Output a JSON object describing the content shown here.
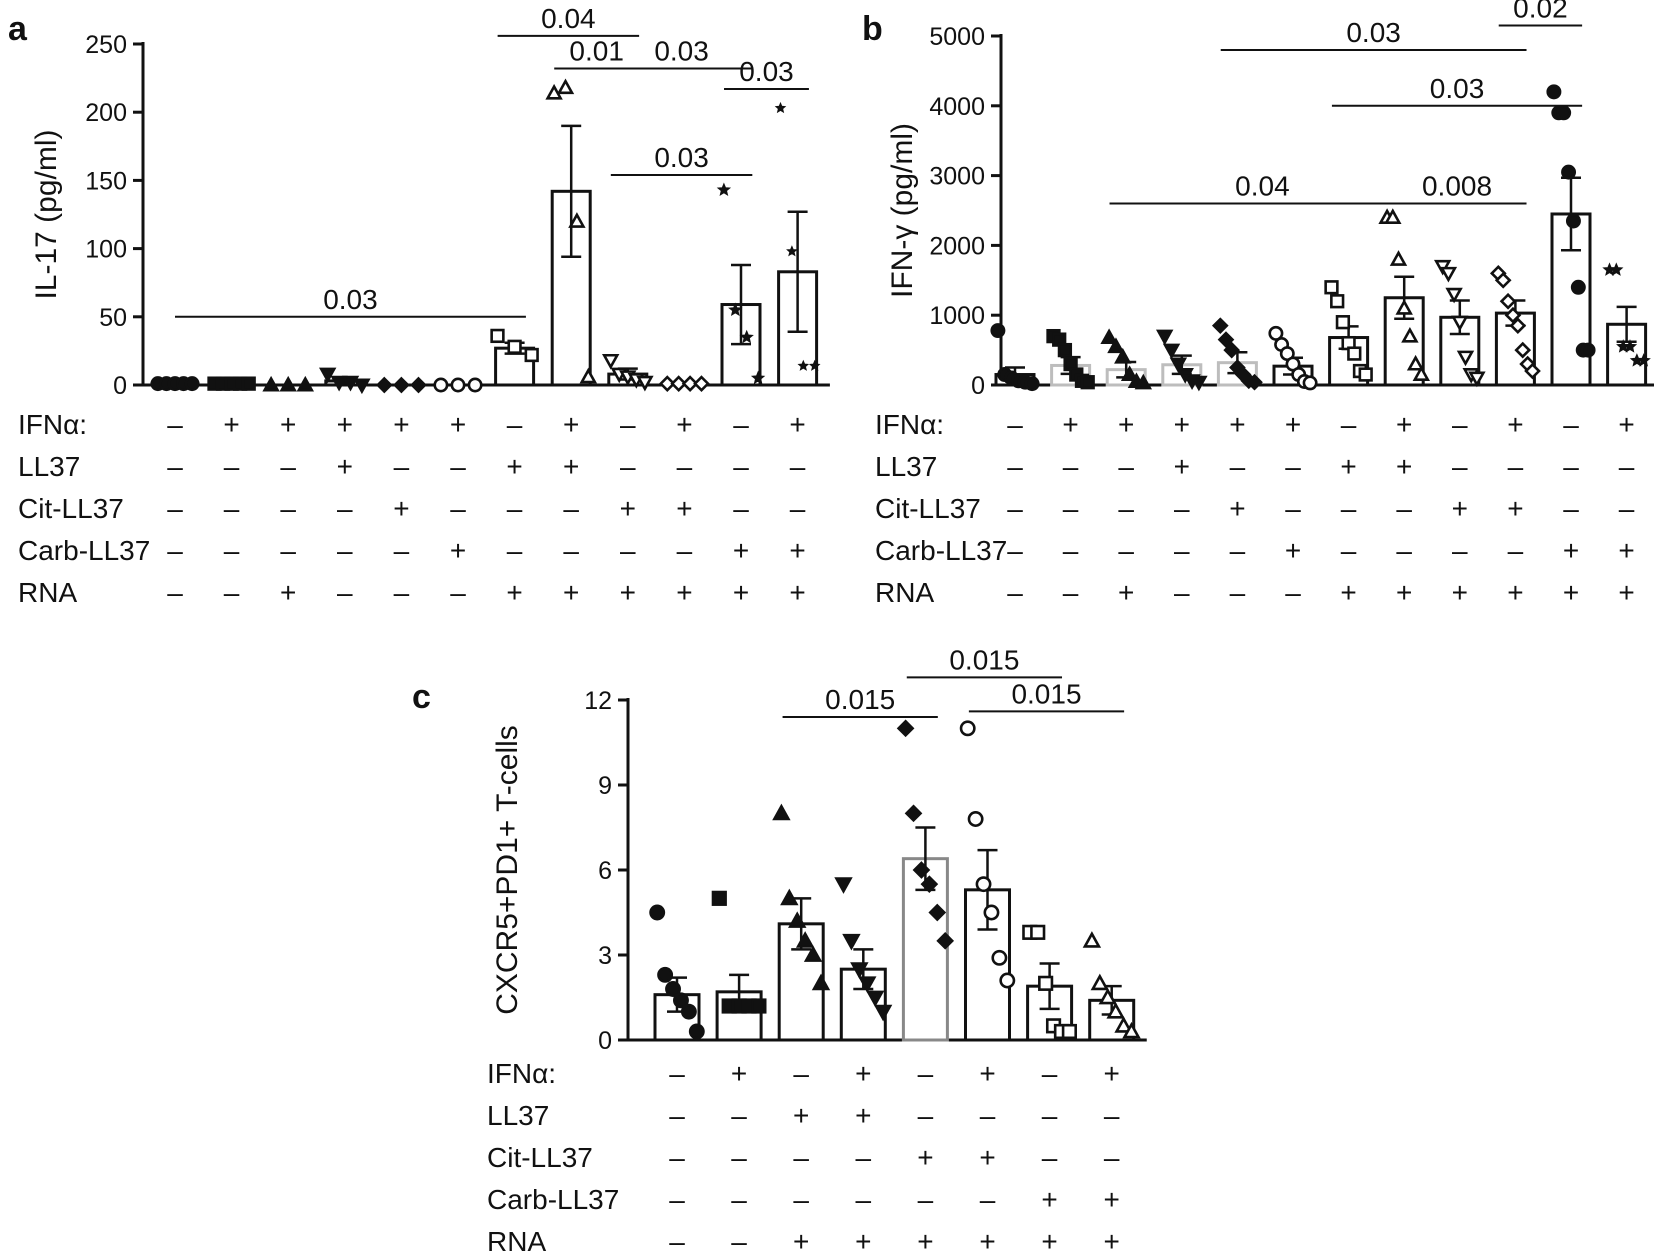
{
  "chart_data": [
    {
      "type": "bar",
      "panel": "a",
      "ylabel": "IL-17 (pg/ml)",
      "ylim": [
        0,
        250
      ],
      "yticks": [
        0,
        50,
        100,
        150,
        200,
        250
      ],
      "y_tick_labels": [
        "0",
        "50",
        "100",
        "150",
        "200",
        "250"
      ],
      "condition_rows": [
        {
          "label": "IFNα:",
          "signs": [
            "–",
            "+",
            "+",
            "+",
            "+",
            "+",
            "–",
            "+",
            "–",
            "+",
            "–",
            "+"
          ]
        },
        {
          "label": "LL37",
          "signs": [
            "–",
            "–",
            "–",
            "+",
            "–",
            "–",
            "+",
            "+",
            "–",
            "–",
            "–",
            "–"
          ]
        },
        {
          "label": "Cit-LL37",
          "signs": [
            "–",
            "–",
            "–",
            "–",
            "+",
            "–",
            "–",
            "–",
            "+",
            "+",
            "–",
            "–"
          ]
        },
        {
          "label": "Carb-LL37",
          "signs": [
            "–",
            "–",
            "–",
            "–",
            "–",
            "+",
            "–",
            "–",
            "–",
            "–",
            "+",
            "+"
          ]
        },
        {
          "label": "RNA",
          "signs": [
            "–",
            "–",
            "+",
            "–",
            "–",
            "–",
            "+",
            "+",
            "+",
            "+",
            "+",
            "+"
          ]
        }
      ],
      "bars": [
        {
          "value": 1,
          "sem": 1,
          "marker": "circle-filled",
          "points": [
            1,
            1,
            1,
            1,
            1
          ]
        },
        {
          "value": 1,
          "sem": 1,
          "marker": "square-filled",
          "points": [
            1,
            1,
            1,
            1,
            1
          ]
        },
        {
          "value": 0,
          "sem": 0,
          "marker": "triangle-filled",
          "points": [
            0,
            0,
            0
          ]
        },
        {
          "value": 3,
          "sem": 2,
          "marker": "triangle-down-filled",
          "points": [
            8,
            2,
            2,
            0
          ]
        },
        {
          "value": 0,
          "sem": 0,
          "marker": "diamond-filled",
          "points": [
            0,
            0,
            0
          ]
        },
        {
          "value": 0,
          "sem": 0,
          "marker": "circle-open",
          "points": [
            0,
            0,
            0
          ]
        },
        {
          "value": 27,
          "sem": 4,
          "marker": "square-open",
          "points": [
            36,
            28,
            22
          ]
        },
        {
          "value": 142,
          "sem": 48,
          "marker": "triangle-open",
          "points": [
            214,
            218,
            120,
            6
          ]
        },
        {
          "value": 8,
          "sem": 4,
          "marker": "triangle-down-open",
          "points": [
            18,
            8,
            6,
            4,
            2
          ]
        },
        {
          "value": 1,
          "sem": 1,
          "marker": "diamond-open",
          "points": [
            1,
            1,
            1,
            1
          ]
        },
        {
          "value": 59,
          "sem": 29,
          "marker": "star-filled",
          "points": [
            143,
            55,
            35,
            5
          ]
        },
        {
          "value": 83,
          "sem": 44,
          "marker": "star-small",
          "points": [
            203,
            98,
            14,
            14
          ]
        }
      ],
      "comparisons": [
        {
          "from": 1,
          "to": 7,
          "p": "0.03",
          "y": 50
        },
        {
          "from": 8,
          "to": 9,
          "p": "0.01",
          "y": 232
        },
        {
          "from": 7,
          "to": 9,
          "p": "0.04",
          "y": 256
        },
        {
          "from": 9,
          "to": 11,
          "p": "0.03",
          "y": 232
        },
        {
          "from": 9,
          "to": 11,
          "p": "0.03",
          "y": 154
        },
        {
          "from": 11,
          "to": 12,
          "p": "0.03",
          "y": 217
        }
      ]
    },
    {
      "type": "bar",
      "panel": "b",
      "ylabel": "IFN-γ (pg/ml)",
      "ylim": [
        0,
        5000
      ],
      "yticks": [
        0,
        1000,
        2000,
        3000,
        4000,
        5000
      ],
      "y_tick_labels": [
        "0",
        "1000",
        "2000",
        "3000",
        "4000",
        "5000"
      ],
      "condition_rows": [
        {
          "label": "IFNα:",
          "signs": [
            "–",
            "+",
            "+",
            "+",
            "+",
            "+",
            "–",
            "+",
            "–",
            "+",
            "–",
            "+"
          ]
        },
        {
          "label": "LL37",
          "signs": [
            "–",
            "–",
            "–",
            "+",
            "–",
            "–",
            "+",
            "+",
            "–",
            "–",
            "–",
            "–"
          ]
        },
        {
          "label": "Cit-LL37",
          "signs": [
            "–",
            "–",
            "–",
            "–",
            "+",
            "–",
            "–",
            "–",
            "+",
            "+",
            "–",
            "–"
          ]
        },
        {
          "label": "Carb-LL37",
          "signs": [
            "–",
            "–",
            "–",
            "–",
            "–",
            "+",
            "–",
            "–",
            "–",
            "–",
            "+",
            "+"
          ]
        },
        {
          "label": "RNA",
          "signs": [
            "–",
            "–",
            "+",
            "–",
            "–",
            "–",
            "+",
            "+",
            "+",
            "+",
            "+",
            "+"
          ]
        }
      ],
      "bars": [
        {
          "value": 150,
          "sem": 100,
          "marker": "circle-filled",
          "points": [
            780,
            150,
            100,
            60,
            40,
            20
          ]
        },
        {
          "value": 280,
          "sem": 120,
          "marker": "square-filled",
          "points": [
            700,
            650,
            500,
            300,
            150,
            60,
            40
          ]
        },
        {
          "value": 220,
          "sem": 110,
          "marker": "triangle-filled",
          "points": [
            680,
            550,
            400,
            150,
            50,
            30
          ]
        },
        {
          "value": 290,
          "sem": 130,
          "marker": "triangle-down-filled",
          "points": [
            700,
            500,
            300,
            150,
            60,
            40
          ]
        },
        {
          "value": 320,
          "sem": 150,
          "marker": "diamond-filled",
          "points": [
            850,
            650,
            500,
            250,
            150,
            60,
            40
          ]
        },
        {
          "value": 270,
          "sem": 120,
          "marker": "circle-open",
          "points": [
            740,
            580,
            450,
            300,
            150,
            50,
            30
          ]
        },
        {
          "value": 680,
          "sem": 160,
          "marker": "square-open",
          "points": [
            1400,
            1200,
            900,
            600,
            450,
            200,
            150
          ]
        },
        {
          "value": 1250,
          "sem": 300,
          "marker": "triangle-open",
          "points": [
            2400,
            2400,
            1800,
            1100,
            700,
            300,
            150
          ]
        },
        {
          "value": 970,
          "sem": 240,
          "marker": "triangle-down-open",
          "points": [
            1700,
            1600,
            1300,
            900,
            400,
            150,
            100
          ]
        },
        {
          "value": 1030,
          "sem": 180,
          "marker": "diamond-open",
          "points": [
            1600,
            1500,
            1200,
            1000,
            850,
            500,
            300,
            200
          ]
        },
        {
          "value": 2450,
          "sem": 520,
          "marker": "circle-filled",
          "points": [
            4200,
            3900,
            3900,
            3050,
            2350,
            1400,
            500,
            500
          ]
        },
        {
          "value": 870,
          "sem": 250,
          "marker": "star-filled",
          "points": [
            1650,
            1650,
            550,
            550,
            350,
            350
          ]
        }
      ],
      "comparisons": [
        {
          "from": 3,
          "to": 8,
          "p": "0.04",
          "y": 2600
        },
        {
          "from": 8,
          "to": 10,
          "p": "0.008",
          "y": 2600
        },
        {
          "from": 7,
          "to": 11,
          "p": "0.03",
          "y": 4000
        },
        {
          "from": 5,
          "to": 10,
          "p": "0.03",
          "y": 4800
        },
        {
          "from": 10,
          "to": 11,
          "p": "0.02",
          "y": 5150
        }
      ]
    },
    {
      "type": "bar",
      "panel": "c",
      "ylabel": "CXCR5+PD1+ T-cells",
      "ylim": [
        0,
        12
      ],
      "yticks": [
        0,
        3,
        6,
        9,
        12
      ],
      "y_tick_labels": [
        "0",
        "3",
        "6",
        "9",
        "12"
      ],
      "condition_rows": [
        {
          "label": "IFNα:",
          "signs": [
            "–",
            "+",
            "–",
            "+",
            "–",
            "+",
            "–",
            "+"
          ]
        },
        {
          "label": "LL37",
          "signs": [
            "–",
            "–",
            "+",
            "+",
            "–",
            "–",
            "–",
            "–"
          ]
        },
        {
          "label": "Cit-LL37",
          "signs": [
            "–",
            "–",
            "–",
            "–",
            "+",
            "+",
            "–",
            "–"
          ]
        },
        {
          "label": "Carb-LL37",
          "signs": [
            "–",
            "–",
            "–",
            "–",
            "–",
            "–",
            "+",
            "+"
          ]
        },
        {
          "label": "RNA",
          "signs": [
            "–",
            "–",
            "+",
            "+",
            "+",
            "+",
            "+",
            "+"
          ]
        }
      ],
      "bars": [
        {
          "value": 1.6,
          "sem": 0.6,
          "marker": "circle-filled",
          "points": [
            4.5,
            2.3,
            1.8,
            1.4,
            1.0,
            0.3
          ]
        },
        {
          "value": 1.7,
          "sem": 0.6,
          "marker": "square-filled",
          "points": [
            5.0,
            1.2,
            1.2,
            1.2,
            1.2
          ]
        },
        {
          "value": 4.1,
          "sem": 0.9,
          "marker": "triangle-filled",
          "points": [
            8.0,
            5.0,
            4.2,
            3.5,
            3.0,
            2.0
          ]
        },
        {
          "value": 2.5,
          "sem": 0.7,
          "marker": "triangle-down-filled",
          "points": [
            5.5,
            3.5,
            2.5,
            2.0,
            1.5,
            1.0
          ]
        },
        {
          "value": 6.4,
          "sem": 1.1,
          "marker": "diamond-filled",
          "points": [
            11.0,
            8.0,
            6.0,
            5.5,
            4.5,
            3.5
          ]
        },
        {
          "value": 5.3,
          "sem": 1.4,
          "marker": "circle-open",
          "points": [
            11.0,
            7.8,
            5.5,
            4.5,
            2.9,
            2.1
          ]
        },
        {
          "value": 1.9,
          "sem": 0.8,
          "marker": "square-open",
          "points": [
            3.8,
            3.8,
            2.0,
            0.5,
            0.3,
            0.3
          ]
        },
        {
          "value": 1.4,
          "sem": 0.5,
          "marker": "triangle-open",
          "points": [
            3.5,
            2.0,
            1.5,
            1.0,
            0.5,
            0.3
          ]
        }
      ],
      "comparisons": [
        {
          "from": 3,
          "to": 5,
          "p": "0.015",
          "y": 11.4
        },
        {
          "from": 6,
          "to": 8,
          "p": "0.015",
          "y": 11.6
        },
        {
          "from": 5,
          "to": 7,
          "p": "0.015",
          "y": 12.8
        }
      ]
    }
  ]
}
